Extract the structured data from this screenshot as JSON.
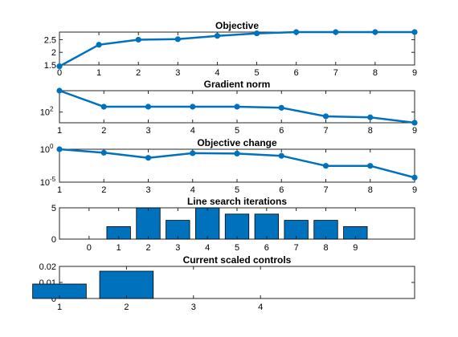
{
  "chart_data": [
    {
      "type": "line",
      "title": "Objective",
      "color": "#0072bd",
      "x": [
        0,
        1,
        2,
        3,
        4,
        5,
        6,
        7,
        8,
        9
      ],
      "y": [
        1.45,
        2.3,
        2.5,
        2.52,
        2.65,
        2.75,
        2.8,
        2.8,
        2.8,
        2.8
      ],
      "xlim": [
        0,
        9
      ],
      "ylim": [
        1.5,
        2.8
      ],
      "yscale": "linear",
      "xticks": [
        "0",
        "1",
        "2",
        "3",
        "4",
        "5",
        "6",
        "7",
        "8",
        "9"
      ],
      "yticks": [
        {
          "value": 1.5,
          "label": "1.5"
        },
        {
          "value": 2,
          "label": "2"
        },
        {
          "value": 2.5,
          "label": "2.5"
        }
      ]
    },
    {
      "type": "line",
      "title": "Gradient norm",
      "color": "#0072bd",
      "x": [
        1,
        2,
        3,
        4,
        5,
        6,
        7,
        8,
        9
      ],
      "y": [
        10000,
        316,
        316,
        316,
        316,
        251,
        40,
        32,
        10
      ],
      "xlim": [
        1,
        9
      ],
      "ylim": [
        10,
        10000
      ],
      "yscale": "log",
      "xticks": [
        "1",
        "2",
        "3",
        "4",
        "5",
        "6",
        "7",
        "8",
        "9"
      ],
      "yticks": [
        {
          "value": 100,
          "label": "10",
          "exp": "2"
        }
      ]
    },
    {
      "type": "line",
      "title": "Objective change",
      "color": "#0072bd",
      "x": [
        1,
        2,
        3,
        4,
        5,
        6,
        7,
        8,
        9
      ],
      "y": [
        1,
        0.3,
        0.05,
        0.25,
        0.22,
        0.1,
        0.003,
        0.003,
        5e-05
      ],
      "xlim": [
        1,
        9
      ],
      "ylim": [
        1e-05,
        1
      ],
      "yscale": "log",
      "xticks": [
        "1",
        "2",
        "3",
        "4",
        "5",
        "6",
        "7",
        "8",
        "9"
      ],
      "yticks": [
        {
          "value": 1,
          "label": "10",
          "exp": "0"
        },
        {
          "value": 1e-05,
          "label": "10",
          "exp": "-5"
        }
      ]
    },
    {
      "type": "bar",
      "title": "Line search iterations",
      "color": "#0072bd",
      "categories": [
        "0",
        "1",
        "2",
        "3",
        "4",
        "5",
        "6",
        "7",
        "8",
        "9"
      ],
      "values": [
        0,
        2,
        5,
        3,
        5,
        4,
        4,
        3,
        3,
        2
      ],
      "xlim": [
        -1,
        11
      ],
      "ylim": [
        0,
        5
      ],
      "yticks": [
        {
          "value": 0,
          "label": "0"
        },
        {
          "value": 5,
          "label": "5"
        }
      ]
    },
    {
      "type": "bar",
      "title": "Current scaled controls",
      "color": "#0072bd",
      "categories": [
        "1",
        "2",
        "3",
        "4"
      ],
      "values": [
        0.009,
        0.017,
        0,
        0
      ],
      "xlim": [
        0,
        5.3
      ],
      "ylim": [
        0,
        0.02
      ],
      "yticks": [
        {
          "value": 0,
          "label": "0"
        },
        {
          "value": 0.01,
          "label": "0.01"
        },
        {
          "value": 0.02,
          "label": "0.02"
        }
      ]
    }
  ]
}
